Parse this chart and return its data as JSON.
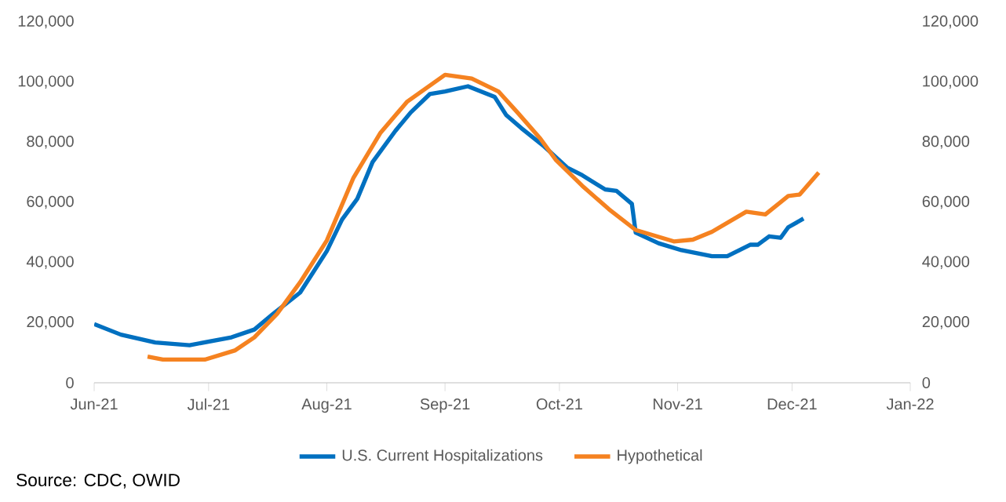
{
  "chart_data": {
    "type": "line",
    "xlim": [
      "2021-06-01",
      "2022-01-01"
    ],
    "xticks": [
      {
        "value": "2021-06-01",
        "label": "Jun-21"
      },
      {
        "value": "2021-07-01",
        "label": "Jul-21"
      },
      {
        "value": "2021-08-01",
        "label": "Aug-21"
      },
      {
        "value": "2021-09-01",
        "label": "Sep-21"
      },
      {
        "value": "2021-10-01",
        "label": "Oct-21"
      },
      {
        "value": "2021-11-01",
        "label": "Nov-21"
      },
      {
        "value": "2021-12-01",
        "label": "Dec-21"
      },
      {
        "value": "2022-01-01",
        "label": "Jan-22"
      }
    ],
    "ylim": [
      0,
      120000
    ],
    "yticks": [
      0,
      {
        "value": 20000,
        "label": "20,000"
      },
      {
        "value": 40000,
        "label": "40,000"
      },
      {
        "value": 60000,
        "label": "60,000"
      },
      {
        "value": 80000,
        "label": "80,000"
      },
      {
        "value": 100000,
        "label": "100,000"
      },
      {
        "value": 120000,
        "label": "120,000"
      }
    ],
    "y2lim": [
      0,
      120000
    ],
    "y2ticks": [
      0,
      {
        "value": 20000,
        "label": "20,000"
      },
      {
        "value": 40000,
        "label": "40,000"
      },
      {
        "value": 60000,
        "label": "60,000"
      },
      {
        "value": 80000,
        "label": "80,000"
      },
      {
        "value": 100000,
        "label": "100,000"
      },
      {
        "value": 120000,
        "label": "120,000"
      }
    ],
    "legend": "bottom",
    "annotations": [
      "Source: CDC, OWID"
    ],
    "series": [
      {
        "name": "U.S. Current Hospitalizations",
        "color": "#0070c0",
        "x": [
          "2021-06-01",
          "2021-06-08",
          "2021-06-17",
          "2021-06-26",
          "2021-07-07",
          "2021-07-13",
          "2021-07-18",
          "2021-07-25",
          "2021-08-01",
          "2021-08-05",
          "2021-08-09",
          "2021-08-13",
          "2021-08-19",
          "2021-08-23",
          "2021-08-28",
          "2021-09-01",
          "2021-09-07",
          "2021-09-14",
          "2021-09-17",
          "2021-09-21",
          "2021-09-27",
          "2021-10-03",
          "2021-10-07",
          "2021-10-13",
          "2021-10-16",
          "2021-10-20",
          "2021-10-21",
          "2021-10-27",
          "2021-11-02",
          "2021-11-10",
          "2021-11-14",
          "2021-11-20",
          "2021-11-22",
          "2021-11-25",
          "2021-11-28",
          "2021-11-30",
          "2021-12-04"
        ],
        "values": [
          19500,
          16000,
          13400,
          12500,
          15100,
          17700,
          23000,
          30000,
          43800,
          54300,
          61200,
          73400,
          83800,
          89900,
          96000,
          96900,
          98600,
          95100,
          89100,
          84700,
          78600,
          71600,
          69000,
          64300,
          63800,
          59500,
          49900,
          46400,
          44100,
          42100,
          42100,
          45900,
          45900,
          48700,
          48200,
          51700,
          54600
        ]
      },
      {
        "name": "Hypothetical",
        "color": "#f58220",
        "x": [
          "2021-06-15",
          "2021-06-19",
          "2021-06-30",
          "2021-07-08",
          "2021-07-13",
          "2021-07-19",
          "2021-07-25",
          "2021-08-01",
          "2021-08-08",
          "2021-08-15",
          "2021-08-22",
          "2021-09-01",
          "2021-09-08",
          "2021-09-15",
          "2021-09-20",
          "2021-09-26",
          "2021-09-30",
          "2021-10-07",
          "2021-10-14",
          "2021-10-21",
          "2021-10-31",
          "2021-11-05",
          "2021-11-10",
          "2021-11-19",
          "2021-11-24",
          "2021-11-30",
          "2021-12-03",
          "2021-12-08"
        ],
        "values": [
          8700,
          7700,
          7700,
          10800,
          15100,
          23000,
          33400,
          47300,
          68200,
          83000,
          93400,
          102400,
          101200,
          96900,
          89900,
          81200,
          74200,
          65500,
          57700,
          50800,
          47000,
          47600,
          50200,
          56900,
          56000,
          62100,
          62600,
          69900
        ]
      }
    ]
  }
}
